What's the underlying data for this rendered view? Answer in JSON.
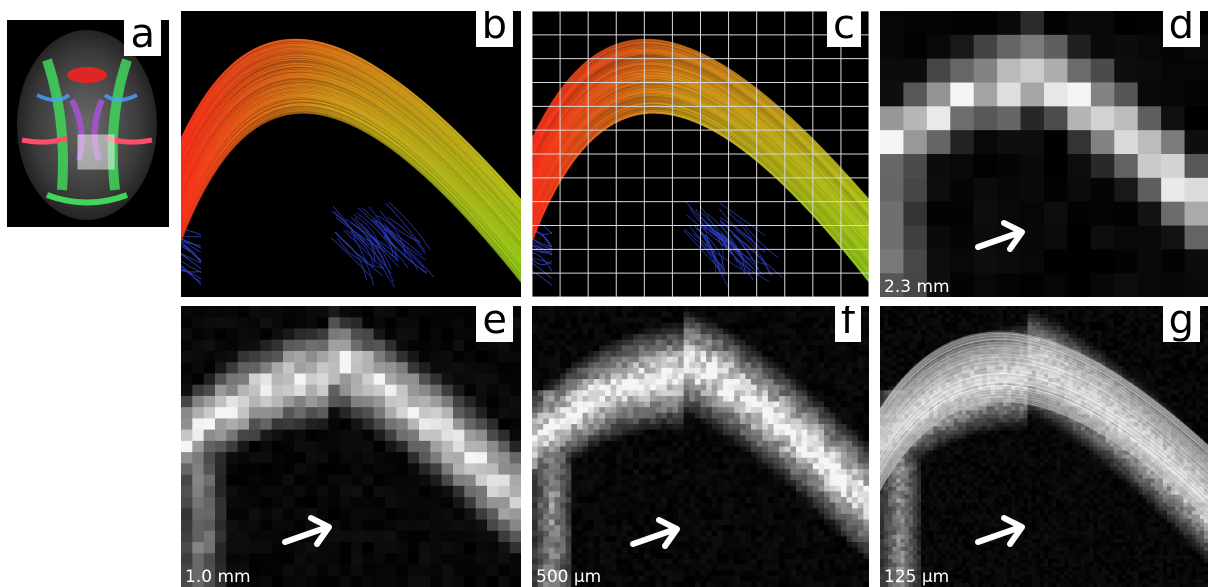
{
  "panels": {
    "a": {
      "letter": "a"
    },
    "b": {
      "letter": "b"
    },
    "c": {
      "letter": "c"
    },
    "d": {
      "letter": "d",
      "scale": "2.3 mm"
    },
    "e": {
      "letter": "e",
      "scale": "1.0 mm"
    },
    "f": {
      "letter": "f",
      "scale": "500 µm"
    },
    "g": {
      "letter": "g",
      "scale": "125 µm"
    }
  },
  "colors": {
    "fiber_red": "#ff2a1a",
    "fiber_yellow": "#d8d21a",
    "fiber_green": "#6fd11a",
    "fiber_blue": "#3040c8",
    "grid": "#d8d8d8",
    "arrow": "#ffffff"
  },
  "icons": {
    "arrow": "right-arrow-icon"
  }
}
